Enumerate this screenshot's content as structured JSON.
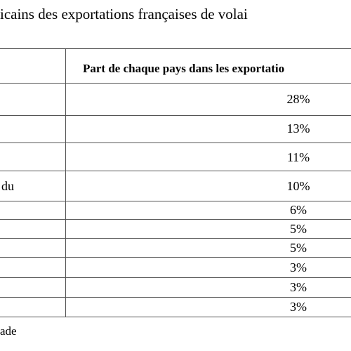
{
  "document": {
    "title": "icains des exportations françaises de volai",
    "table": {
      "header_right": "Part de chaque pays dans les exportatio",
      "rows": [
        {
          "left": "",
          "share": "28%"
        },
        {
          "left": "",
          "share": "13%"
        },
        {
          "left": "",
          "share": "11%"
        },
        {
          "left": "du",
          "share": "10%"
        },
        {
          "left": "",
          "share": "6%"
        },
        {
          "left": "",
          "share": "5%"
        },
        {
          "left": "",
          "share": "5%"
        },
        {
          "left": "",
          "share": "3%"
        },
        {
          "left": "",
          "share": "3%"
        },
        {
          "left": "",
          "share": "3%"
        }
      ]
    },
    "footnote": "ade"
  }
}
